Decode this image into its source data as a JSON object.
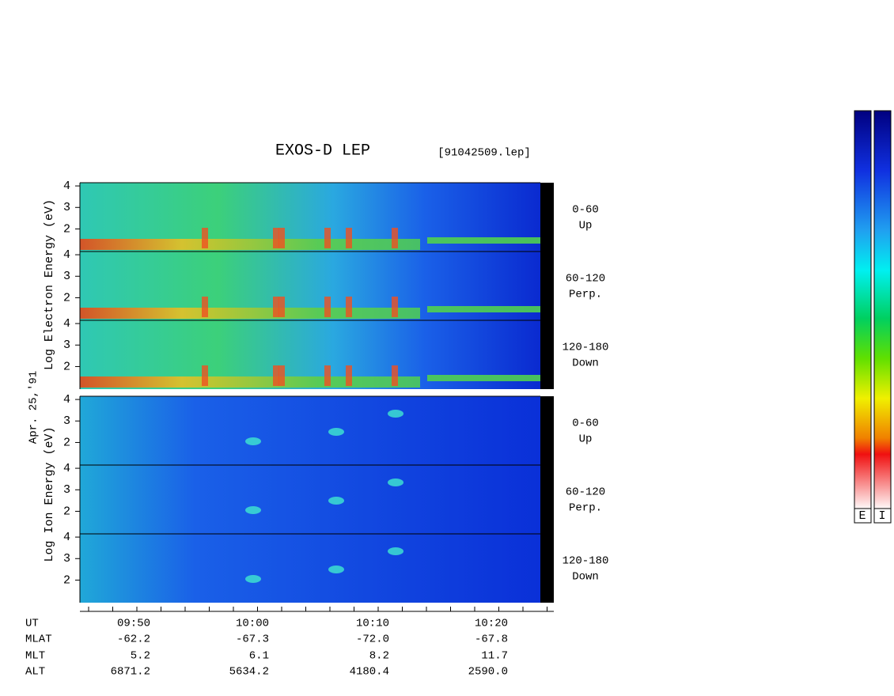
{
  "header": {
    "title": "EXOS-D LEP",
    "file": "[91042509.lep]"
  },
  "date": "Apr. 25,'91",
  "electron_axis_label": "Log Electron Energy (eV)",
  "ion_axis_label": "Log Ion Energy (eV)",
  "panels": [
    {
      "species": "electron",
      "angle": "0-60",
      "direction": "Up",
      "yticks": [
        2,
        3,
        4
      ]
    },
    {
      "species": "electron",
      "angle": "60-120",
      "direction": "Perp.",
      "yticks": [
        2,
        3,
        4
      ]
    },
    {
      "species": "electron",
      "angle": "120-180",
      "direction": "Down",
      "yticks": [
        2,
        3,
        4
      ]
    },
    {
      "species": "ion",
      "angle": "0-60",
      "direction": "Up",
      "yticks": [
        2,
        3,
        4
      ]
    },
    {
      "species": "ion",
      "angle": "60-120",
      "direction": "Perp.",
      "yticks": [
        2,
        3,
        4
      ]
    },
    {
      "species": "ion",
      "angle": "120-180",
      "direction": "Down",
      "yticks": [
        2,
        3,
        4
      ]
    }
  ],
  "rows": [
    {
      "label": "UT",
      "values": [
        "09:50",
        "10:00",
        "10:10",
        "10:20"
      ]
    },
    {
      "label": "MLAT",
      "values": [
        "-62.2",
        "-67.3",
        "-72.0",
        "-67.8"
      ]
    },
    {
      "label": "MLT",
      "values": [
        "5.2",
        "6.1",
        "8.2",
        "11.7"
      ]
    },
    {
      "label": "ALT",
      "values": [
        "6871.2",
        "5634.2",
        "4180.4",
        "2590.0"
      ]
    }
  ],
  "colorbars": [
    "E",
    "I"
  ]
}
